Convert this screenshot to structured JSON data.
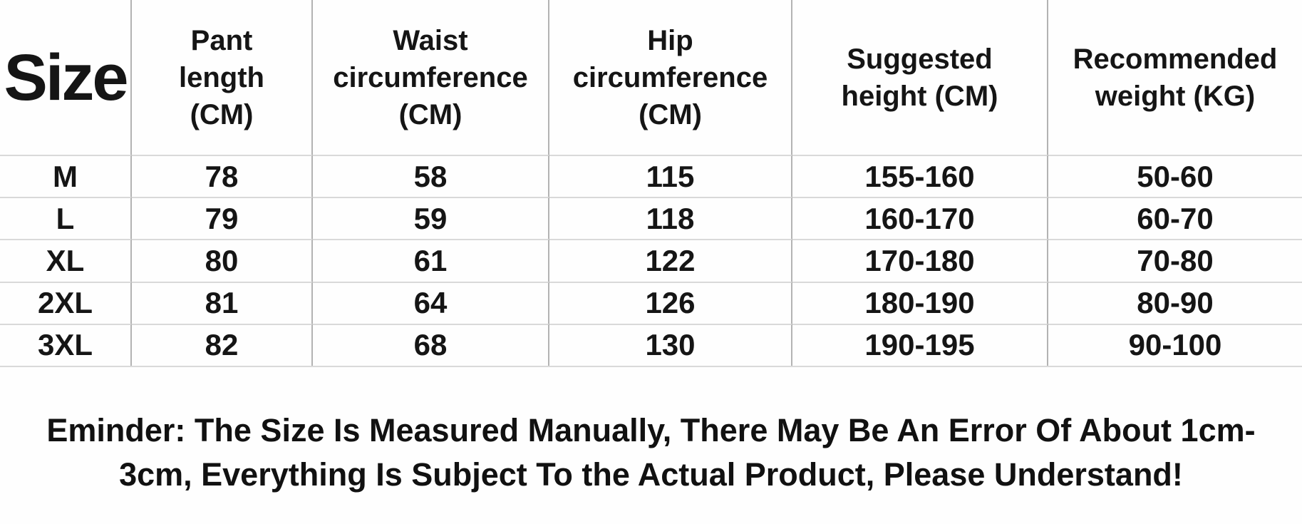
{
  "chart_data": {
    "type": "table",
    "title": "Size chart",
    "columns": [
      {
        "label": "Size"
      },
      {
        "label": "Pant\nlength\n(CM)"
      },
      {
        "label": "Waist\ncircumference\n(CM)"
      },
      {
        "label": "Hip\ncircumference\n(CM)"
      },
      {
        "label": "Suggested\nheight (CM)"
      },
      {
        "label": "Recommended\nweight (KG)"
      }
    ],
    "rows": [
      [
        "M",
        "78",
        "58",
        "115",
        "155-160",
        "50-60"
      ],
      [
        "L",
        "79",
        "59",
        "118",
        "160-170",
        "60-70"
      ],
      [
        "XL",
        "80",
        "61",
        "122",
        "170-180",
        "70-80"
      ],
      [
        "2XL",
        "81",
        "64",
        "126",
        "180-190",
        "80-90"
      ],
      [
        "3XL",
        "82",
        "68",
        "130",
        "190-195",
        "90-100"
      ]
    ]
  },
  "footer": {
    "note": "Eminder: The Size Is Measured Manually, There May Be An Error Of About 1cm-3cm, Everything Is Subject To the Actual Product, Please Understand!"
  },
  "colors": {
    "background": "#fefefe",
    "text": "#151515",
    "grid_vertical": "#b3b3b3",
    "grid_horizontal": "#d9d9d9"
  }
}
